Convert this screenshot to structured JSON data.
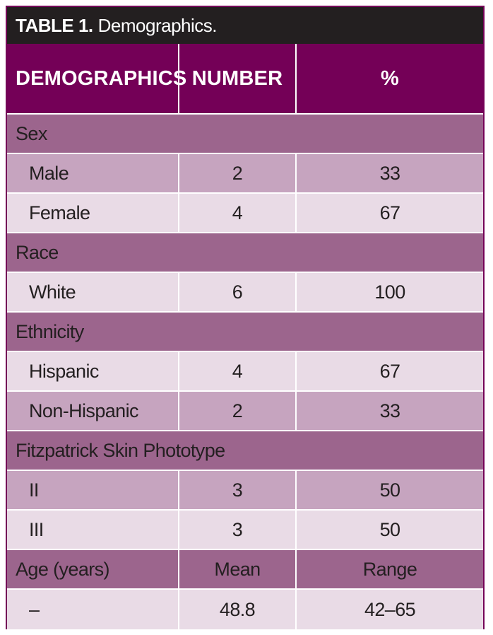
{
  "title": {
    "label": "TABLE 1.",
    "text": "Demographics."
  },
  "header": {
    "col1": "DEMOGRAPHICS",
    "col2": "NUMBER",
    "col3": "%"
  },
  "sections": [
    {
      "name": "Sex",
      "rows": [
        {
          "label": "Male",
          "number": "2",
          "percent": "33"
        },
        {
          "label": "Female",
          "number": "4",
          "percent": "67"
        }
      ]
    },
    {
      "name": "Race",
      "rows": [
        {
          "label": "White",
          "number": "6",
          "percent": "100"
        }
      ]
    },
    {
      "name": "Ethnicity",
      "rows": [
        {
          "label": "Hispanic",
          "number": "4",
          "percent": "67"
        },
        {
          "label": "Non-Hispanic",
          "number": "2",
          "percent": "33"
        }
      ]
    },
    {
      "name": "Fitzpatrick Skin Phototype",
      "rows": [
        {
          "label": "II",
          "number": "3",
          "percent": "50"
        },
        {
          "label": "III",
          "number": "3",
          "percent": "50"
        }
      ]
    }
  ],
  "age": {
    "label": "Age (years)",
    "col2": "Mean",
    "col3": "Range",
    "value_label": "–",
    "mean": "48.8",
    "range": "42–65"
  },
  "colors": {
    "header_bg": "#740057",
    "title_bg": "#231f20",
    "section_bg": "#9c658d",
    "row_dark": "#c6a4bf",
    "row_light": "#e9dbe6"
  }
}
